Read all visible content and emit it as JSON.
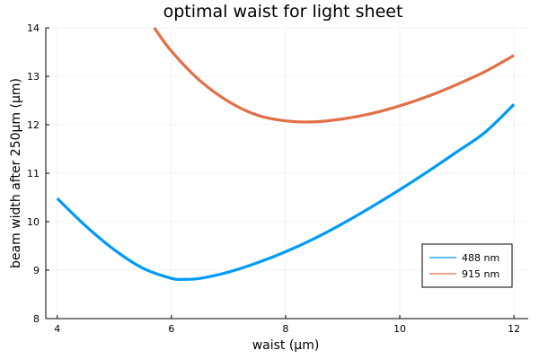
{
  "chart_data": {
    "type": "line",
    "title": "optimal waist for light sheet",
    "xlabel": "waist (µm)",
    "ylabel": "beam width after 250µm (µm)",
    "xlim": [
      3.8,
      12.25
    ],
    "ylim": [
      8,
      14
    ],
    "xticks": [
      4,
      6,
      8,
      10,
      12
    ],
    "yticks": [
      8,
      9,
      10,
      11,
      12,
      13,
      14
    ],
    "grid": true,
    "legend_position": "bottom-right",
    "series": [
      {
        "name": "488 nm",
        "color": "#009af9",
        "x": [
          4.0,
          4.5,
          5.0,
          5.5,
          6.0,
          6.2,
          6.5,
          7.0,
          7.5,
          8.0,
          8.5,
          9.0,
          9.5,
          10.0,
          10.5,
          11.0,
          11.5,
          12.0
        ],
        "y": [
          10.48,
          9.91,
          9.42,
          9.04,
          8.83,
          8.81,
          8.83,
          8.96,
          9.15,
          9.38,
          9.65,
          9.96,
          10.3,
          10.66,
          11.04,
          11.44,
          11.85,
          12.42
        ]
      },
      {
        "name": "915 nm",
        "color": "#e26f46",
        "x": [
          5.7,
          6.0,
          6.5,
          7.0,
          7.5,
          8.0,
          8.5,
          9.0,
          9.5,
          10.0,
          10.5,
          11.0,
          11.5,
          12.0
        ],
        "y": [
          14.0,
          13.52,
          12.91,
          12.48,
          12.2,
          12.08,
          12.06,
          12.12,
          12.23,
          12.39,
          12.59,
          12.83,
          13.1,
          13.43
        ]
      }
    ]
  }
}
